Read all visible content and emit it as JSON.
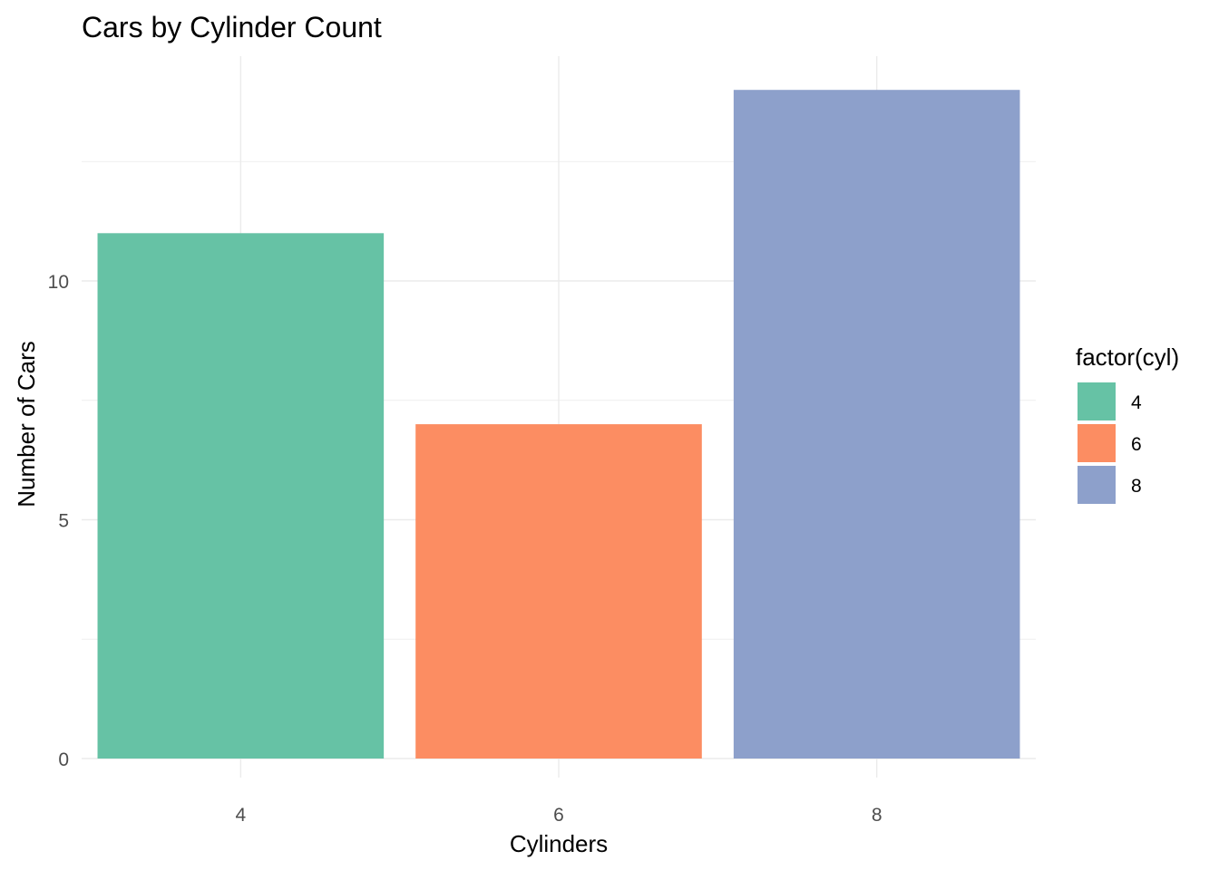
{
  "chart_data": {
    "type": "bar",
    "title": "Cars by Cylinder Count",
    "xlabel": "Cylinders",
    "ylabel": "Number of Cars",
    "categories": [
      "4",
      "6",
      "8"
    ],
    "values": [
      11,
      7,
      14
    ],
    "colors": [
      "#66c2a5",
      "#fc8d62",
      "#8da0cb"
    ],
    "ylim": [
      0,
      14.7
    ],
    "yticks": [
      0,
      5,
      10
    ],
    "grid": true,
    "legend": {
      "title": "factor(cyl)",
      "position": "right",
      "entries": [
        "4",
        "6",
        "8"
      ]
    }
  }
}
